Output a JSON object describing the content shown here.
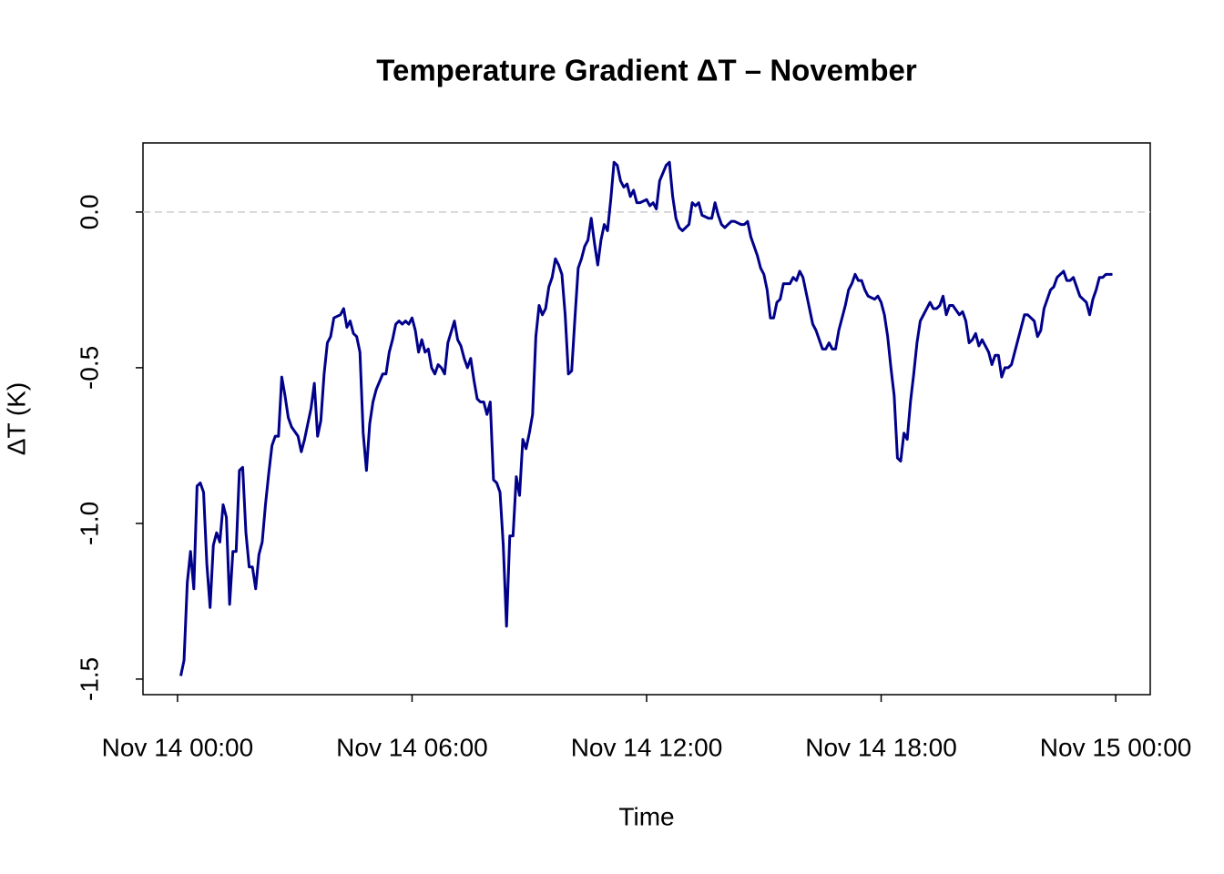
{
  "chart_data": {
    "type": "line",
    "title": "Temperature Gradient ΔT – November",
    "x_label": "Time",
    "y_label": "ΔT (K)",
    "color": "#00008b",
    "reference_line": 0,
    "xlim": [
      "Nov 13 23:07",
      "Nov 15 00:53"
    ],
    "xticks": [
      "Nov 14 00:00",
      "Nov 14 06:00",
      "Nov 14 12:00",
      "Nov 14 18:00",
      "Nov 15 00:00"
    ],
    "ylim": [
      -1.55,
      0.222
    ],
    "yticks": [
      -1.5,
      {
        "value": -1.0,
        "label": "-1.0"
      },
      -0.5,
      {
        "value": 0.0,
        "label": "0.0"
      }
    ],
    "x": [
      "Nov 14 00:05",
      "Nov 14 00:10",
      "Nov 14 00:15",
      "Nov 14 00:20",
      "Nov 14 00:25",
      "Nov 14 00:30",
      "Nov 14 00:35",
      "Nov 14 00:40",
      "Nov 14 00:45",
      "Nov 14 00:50",
      "Nov 14 00:55",
      "Nov 14 01:00",
      "Nov 14 01:05",
      "Nov 14 01:10",
      "Nov 14 01:15",
      "Nov 14 01:20",
      "Nov 14 01:25",
      "Nov 14 01:30",
      "Nov 14 01:35",
      "Nov 14 01:40",
      "Nov 14 01:45",
      "Nov 14 01:50",
      "Nov 14 01:55",
      "Nov 14 02:00",
      "Nov 14 02:05",
      "Nov 14 02:10",
      "Nov 14 02:15",
      "Nov 14 02:20",
      "Nov 14 02:25",
      "Nov 14 02:30",
      "Nov 14 02:35",
      "Nov 14 02:40",
      "Nov 14 02:45",
      "Nov 14 02:50",
      "Nov 14 02:55",
      "Nov 14 03:05",
      "Nov 14 03:10",
      "Nov 14 03:15",
      "Nov 14 03:20",
      "Nov 14 03:25",
      "Nov 14 03:30",
      "Nov 14 03:35",
      "Nov 14 03:40",
      "Nov 14 03:45",
      "Nov 14 03:50",
      "Nov 14 03:55",
      "Nov 14 04:00",
      "Nov 14 04:10",
      "Nov 14 04:15",
      "Nov 14 04:20",
      "Nov 14 04:25",
      "Nov 14 04:30",
      "Nov 14 04:35",
      "Nov 14 04:40",
      "Nov 14 04:45",
      "Nov 14 04:50",
      "Nov 14 04:55",
      "Nov 14 05:00",
      "Nov 14 05:05",
      "Nov 14 05:15",
      "Nov 14 05:20",
      "Nov 14 05:25",
      "Nov 14 05:30",
      "Nov 14 05:35",
      "Nov 14 05:40",
      "Nov 14 05:45",
      "Nov 14 05:50",
      "Nov 14 05:55",
      "Nov 14 06:00",
      "Nov 14 06:05",
      "Nov 14 06:10",
      "Nov 14 06:15",
      "Nov 14 06:20",
      "Nov 14 06:25",
      "Nov 14 06:30",
      "Nov 14 06:35",
      "Nov 14 06:40",
      "Nov 14 06:45",
      "Nov 14 06:50",
      "Nov 14 06:55",
      "Nov 14 07:05",
      "Nov 14 07:10",
      "Nov 14 07:15",
      "Nov 14 07:20",
      "Nov 14 07:25",
      "Nov 14 07:30",
      "Nov 14 07:35",
      "Nov 14 07:40",
      "Nov 14 07:45",
      "Nov 14 07:50",
      "Nov 14 07:55",
      "Nov 14 08:00",
      "Nov 14 08:05",
      "Nov 14 08:10",
      "Nov 14 08:15",
      "Nov 14 08:20",
      "Nov 14 08:25",
      "Nov 14 08:30",
      "Nov 14 08:35",
      "Nov 14 08:40",
      "Nov 14 08:45",
      "Nov 14 08:50",
      "Nov 14 08:55",
      "Nov 14 09:00",
      "Nov 14 09:05",
      "Nov 14 09:10",
      "Nov 14 09:15",
      "Nov 14 09:20",
      "Nov 14 09:25",
      "Nov 14 09:30",
      "Nov 14 09:35",
      "Nov 14 09:40",
      "Nov 14 09:45",
      "Nov 14 09:50",
      "Nov 14 09:55",
      "Nov 14 10:00",
      "Nov 14 10:05",
      "Nov 14 10:10",
      "Nov 14 10:15",
      "Nov 14 10:20",
      "Nov 14 10:25",
      "Nov 14 10:30",
      "Nov 14 10:35",
      "Nov 14 10:40",
      "Nov 14 10:45",
      "Nov 14 10:50",
      "Nov 14 10:55",
      "Nov 14 11:00",
      "Nov 14 11:05",
      "Nov 14 11:10",
      "Nov 14 11:15",
      "Nov 14 11:20",
      "Nov 14 11:25",
      "Nov 14 11:30",
      "Nov 14 11:35",
      "Nov 14 11:40",
      "Nov 14 11:45",
      "Nov 14 11:50",
      "Nov 14 12:00",
      "Nov 14 12:05",
      "Nov 14 12:10",
      "Nov 14 12:15",
      "Nov 14 12:20",
      "Nov 14 12:30",
      "Nov 14 12:35",
      "Nov 14 12:40",
      "Nov 14 12:45",
      "Nov 14 12:50",
      "Nov 14 12:55",
      "Nov 14 13:05",
      "Nov 14 13:10",
      "Nov 14 13:15",
      "Nov 14 13:20",
      "Nov 14 13:25",
      "Nov 14 13:35",
      "Nov 14 13:40",
      "Nov 14 13:45",
      "Nov 14 13:50",
      "Nov 14 13:55",
      "Nov 14 14:00",
      "Nov 14 14:05",
      "Nov 14 14:10",
      "Nov 14 14:15",
      "Nov 14 14:25",
      "Nov 14 14:30",
      "Nov 14 14:35",
      "Nov 14 14:40",
      "Nov 14 14:50",
      "Nov 14 14:55",
      "Nov 14 15:00",
      "Nov 14 15:05",
      "Nov 14 15:10",
      "Nov 14 15:15",
      "Nov 14 15:20",
      "Nov 14 15:25",
      "Nov 14 15:30",
      "Nov 14 15:40",
      "Nov 14 15:45",
      "Nov 14 15:50",
      "Nov 14 15:55",
      "Nov 14 16:00",
      "Nov 14 16:05",
      "Nov 14 16:10",
      "Nov 14 16:15",
      "Nov 14 16:20",
      "Nov 14 16:25",
      "Nov 14 16:30",
      "Nov 14 16:35",
      "Nov 14 16:40",
      "Nov 14 16:45",
      "Nov 14 16:50",
      "Nov 14 16:55",
      "Nov 14 17:05",
      "Nov 14 17:10",
      "Nov 14 17:15",
      "Nov 14 17:20",
      "Nov 14 17:25",
      "Nov 14 17:30",
      "Nov 14 17:35",
      "Nov 14 17:40",
      "Nov 14 17:50",
      "Nov 14 17:55",
      "Nov 14 18:00",
      "Nov 14 18:05",
      "Nov 14 18:10",
      "Nov 14 18:15",
      "Nov 14 18:20",
      "Nov 14 18:25",
      "Nov 14 18:30",
      "Nov 14 18:35",
      "Nov 14 18:40",
      "Nov 14 18:45",
      "Nov 14 18:50",
      "Nov 14 18:55",
      "Nov 14 19:00",
      "Nov 14 19:10",
      "Nov 14 19:15",
      "Nov 14 19:20",
      "Nov 14 19:25",
      "Nov 14 19:30",
      "Nov 14 19:35",
      "Nov 14 19:40",
      "Nov 14 19:45",
      "Nov 14 19:50",
      "Nov 14 20:00",
      "Nov 14 20:05",
      "Nov 14 20:10",
      "Nov 14 20:15",
      "Nov 14 20:20",
      "Nov 14 20:25",
      "Nov 14 20:30",
      "Nov 14 20:35",
      "Nov 14 20:45",
      "Nov 14 20:50",
      "Nov 14 20:55",
      "Nov 14 21:00",
      "Nov 14 21:05",
      "Nov 14 21:10",
      "Nov 14 21:15",
      "Nov 14 21:20",
      "Nov 14 21:30",
      "Nov 14 21:35",
      "Nov 14 21:40",
      "Nov 14 21:45",
      "Nov 14 21:50",
      "Nov 14 21:55",
      "Nov 14 22:00",
      "Nov 14 22:05",
      "Nov 14 22:10",
      "Nov 14 22:20",
      "Nov 14 22:25",
      "Nov 14 22:30",
      "Nov 14 22:35",
      "Nov 14 22:40",
      "Nov 14 22:45",
      "Nov 14 22:50",
      "Nov 14 22:55",
      "Nov 14 23:05",
      "Nov 14 23:10",
      "Nov 14 23:15",
      "Nov 14 23:20",
      "Nov 14 23:25",
      "Nov 14 23:30",
      "Nov 14 23:35",
      "Nov 14 23:40",
      "Nov 14 23:45",
      "Nov 14 23:55"
    ],
    "values": [
      -1.49,
      -1.44,
      -1.19,
      -1.09,
      -1.21,
      -0.88,
      -0.87,
      -0.9,
      -1.13,
      -1.27,
      -1.07,
      -1.03,
      -1.06,
      -0.94,
      -0.98,
      -1.26,
      -1.09,
      -1.09,
      -0.83,
      -0.82,
      -1.03,
      -1.14,
      -1.14,
      -1.21,
      -1.1,
      -1.06,
      -0.94,
      -0.84,
      -0.75,
      -0.72,
      -0.72,
      -0.53,
      -0.59,
      -0.66,
      -0.69,
      -0.72,
      -0.77,
      -0.73,
      -0.68,
      -0.63,
      -0.55,
      -0.72,
      -0.67,
      -0.52,
      -0.42,
      -0.4,
      -0.34,
      -0.33,
      -0.31,
      -0.37,
      -0.35,
      -0.39,
      -0.4,
      -0.45,
      -0.71,
      -0.83,
      -0.68,
      -0.61,
      -0.57,
      -0.52,
      -0.52,
      -0.45,
      -0.41,
      -0.36,
      -0.35,
      -0.36,
      -0.35,
      -0.36,
      -0.34,
      -0.38,
      -0.45,
      -0.41,
      -0.45,
      -0.44,
      -0.5,
      -0.52,
      -0.49,
      -0.5,
      -0.52,
      -0.42,
      -0.35,
      -0.41,
      -0.43,
      -0.47,
      -0.5,
      -0.47,
      -0.54,
      -0.6,
      -0.61,
      -0.61,
      -0.65,
      -0.61,
      -0.86,
      -0.87,
      -0.9,
      -1.07,
      -1.33,
      -1.04,
      -1.04,
      -0.85,
      -0.91,
      -0.73,
      -0.76,
      -0.71,
      -0.65,
      -0.4,
      -0.3,
      -0.33,
      -0.31,
      -0.24,
      -0.21,
      -0.15,
      -0.17,
      -0.2,
      -0.33,
      -0.52,
      -0.51,
      -0.34,
      -0.18,
      -0.15,
      -0.11,
      -0.09,
      -0.02,
      -0.1,
      -0.17,
      -0.09,
      -0.04,
      -0.06,
      0.04,
      0.16,
      0.15,
      0.1,
      0.08,
      0.09,
      0.05,
      0.07,
      0.03,
      0.03,
      0.04,
      0.02,
      0.03,
      0.01,
      0.1,
      0.15,
      0.16,
      0.05,
      -0.02,
      -0.05,
      -0.06,
      -0.04,
      0.03,
      0.02,
      0.03,
      -0.01,
      -0.02,
      -0.02,
      0.03,
      -0.01,
      -0.04,
      -0.05,
      -0.04,
      -0.03,
      -0.03,
      -0.04,
      -0.04,
      -0.03,
      -0.08,
      -0.14,
      -0.18,
      -0.2,
      -0.25,
      -0.34,
      -0.34,
      -0.29,
      -0.28,
      -0.23,
      -0.23,
      -0.21,
      -0.22,
      -0.19,
      -0.21,
      -0.26,
      -0.31,
      -0.36,
      -0.38,
      -0.41,
      -0.44,
      -0.44,
      -0.42,
      -0.44,
      -0.44,
      -0.38,
      -0.3,
      -0.25,
      -0.23,
      -0.2,
      -0.22,
      -0.22,
      -0.25,
      -0.27,
      -0.28,
      -0.27,
      -0.29,
      -0.33,
      -0.4,
      -0.5,
      -0.59,
      -0.79,
      -0.8,
      -0.71,
      -0.73,
      -0.61,
      -0.52,
      -0.42,
      -0.35,
      -0.31,
      -0.29,
      -0.31,
      -0.31,
      -0.3,
      -0.27,
      -0.33,
      -0.3,
      -0.3,
      -0.33,
      -0.32,
      -0.35,
      -0.42,
      -0.41,
      -0.39,
      -0.43,
      -0.41,
      -0.45,
      -0.49,
      -0.46,
      -0.46,
      -0.53,
      -0.5,
      -0.5,
      -0.49,
      -0.41,
      -0.37,
      -0.33,
      -0.33,
      -0.34,
      -0.35,
      -0.4,
      -0.38,
      -0.31,
      -0.25,
      -0.24,
      -0.21,
      -0.2,
      -0.19,
      -0.22,
      -0.22,
      -0.21,
      -0.27,
      -0.28,
      -0.29,
      -0.33,
      -0.28,
      -0.25,
      -0.21,
      -0.21,
      -0.2,
      -0.2
    ]
  }
}
